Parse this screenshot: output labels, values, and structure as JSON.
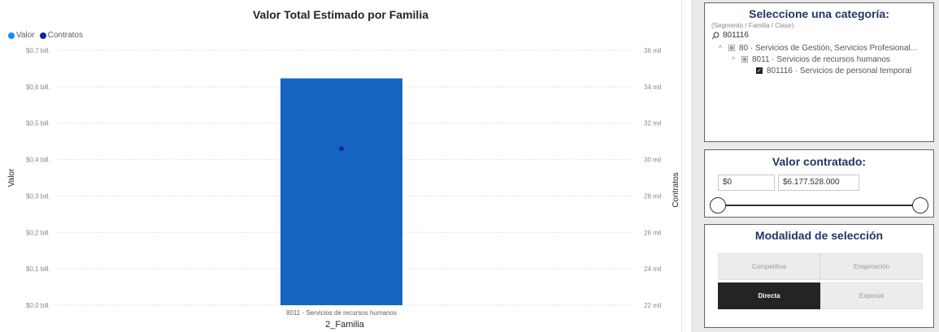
{
  "chart_data": {
    "type": "bar",
    "title": "Valor Total Estimado por Familia",
    "xlabel": "2_Familia",
    "ylabel": "Valor",
    "y2label": "Contratos",
    "categories": [
      "8011 - Servicios de recursos humanos"
    ],
    "series": [
      {
        "name": "Valor",
        "type": "bar",
        "axis": "left",
        "values": [
          0.623
        ],
        "color": "#118DFF"
      },
      {
        "name": "Contratos",
        "type": "point",
        "axis": "right",
        "values": [
          30.6
        ],
        "color": "#12239E"
      }
    ],
    "ylim": [
      0,
      0.7
    ],
    "y2lim": [
      22,
      36
    ],
    "yticks": [
      "$0,0 bill.",
      "$0,1 bill.",
      "$0,2 bill.",
      "$0,3 bill.",
      "$0,4 bill.",
      "$0,5 bill.",
      "$0,6 bill.",
      "$0,7 bill."
    ],
    "y2ticks": [
      "22 mil",
      "24 mil",
      "26 mil",
      "28 mil",
      "30 mil",
      "32 mil",
      "34 mil",
      "36 mil"
    ],
    "legend": {
      "position": "top-left",
      "entries": [
        "Valor",
        "Contratos"
      ]
    },
    "grid": true,
    "bar_color": "#1565c0",
    "point_color": "#12239E"
  },
  "category_filter": {
    "title": "Seleccione una categoría:",
    "subtitle": "(Segmento / Familia / Clase)",
    "search_value": "801116",
    "tree": [
      {
        "chevron": "^",
        "label": "80 · Servicios de Gestión, Servicios Profesional...",
        "state": "partial"
      },
      {
        "chevron": "^",
        "label": "8011 · Servicios de recursos humanos",
        "state": "partial"
      },
      {
        "chevron": "",
        "label": "801116 · Servicios de personal temporal",
        "state": "checked"
      }
    ]
  },
  "value_filter": {
    "title": "Valor contratado:",
    "min_value": "$0",
    "max_value": "$6.177.528.000"
  },
  "modality": {
    "title": "Modalidad de selección",
    "buttons": [
      {
        "label": "Competitiva",
        "active": false
      },
      {
        "label": "Enajenación",
        "active": false
      },
      {
        "label": "Directa",
        "active": true
      },
      {
        "label": "Especial",
        "active": false
      }
    ]
  },
  "colors": {
    "accent": "#1f3864",
    "bar": "#1565c0",
    "point": "#12239E",
    "legend_valor": "#118DFF"
  }
}
